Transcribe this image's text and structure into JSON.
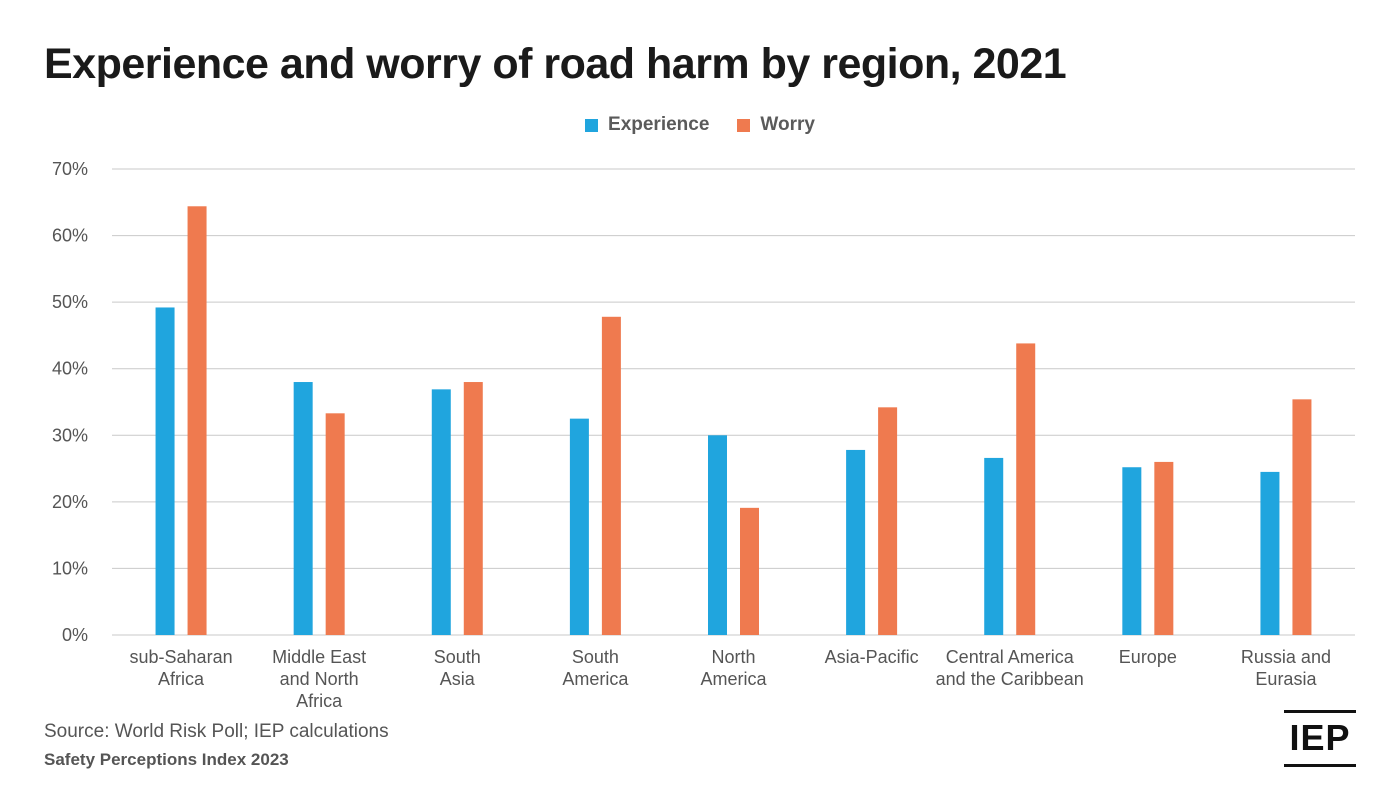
{
  "colors": {
    "experience": "#20a5de",
    "worry": "#ef7a4f",
    "grid": "#c9c9c9",
    "axis_text": "#555555"
  },
  "chart_data": {
    "type": "bar",
    "title": "Experience and worry of road harm by region, 2021",
    "categories": [
      [
        "sub-Saharan",
        "Africa"
      ],
      [
        "Middle East",
        "and North",
        "Africa"
      ],
      [
        "South",
        "Asia"
      ],
      [
        "South",
        "America"
      ],
      [
        "North",
        "America"
      ],
      [
        "Asia-Pacific"
      ],
      [
        "Central America",
        "and the Caribbean"
      ],
      [
        "Europe"
      ],
      [
        "Russia and",
        "Eurasia"
      ]
    ],
    "series": [
      {
        "name": "Experience",
        "color": "#20a5de",
        "values": [
          49.2,
          38.0,
          36.9,
          32.5,
          30.0,
          27.8,
          26.6,
          25.2,
          24.5
        ]
      },
      {
        "name": "Worry",
        "color": "#ef7a4f",
        "values": [
          64.4,
          33.3,
          38.0,
          47.8,
          19.1,
          34.2,
          43.8,
          26.0,
          35.4
        ]
      }
    ],
    "ylim": [
      0,
      70
    ],
    "yticks": [
      0,
      10,
      20,
      30,
      40,
      50,
      60,
      70
    ],
    "ytick_labels": [
      "0%",
      "10%",
      "20%",
      "30%",
      "40%",
      "50%",
      "60%",
      "70%"
    ],
    "grid": true,
    "legend_position": "top-center"
  },
  "footer": {
    "source": "Source: World Risk Poll; IEP calculations",
    "index": "Safety Perceptions Index 2023"
  },
  "logo": {
    "text": "IEP"
  }
}
